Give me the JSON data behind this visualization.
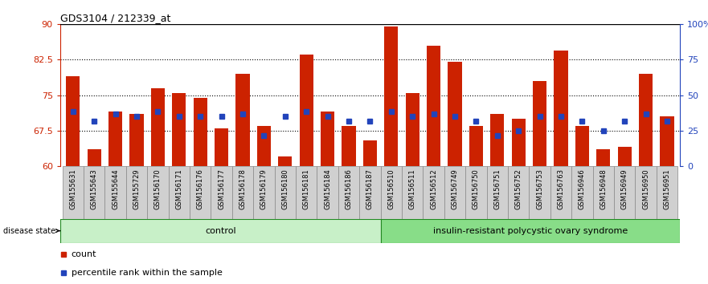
{
  "title": "GDS3104 / 212339_at",
  "samples": [
    "GSM155631",
    "GSM155643",
    "GSM155644",
    "GSM155729",
    "GSM156170",
    "GSM156171",
    "GSM156176",
    "GSM156177",
    "GSM156178",
    "GSM156179",
    "GSM156180",
    "GSM156181",
    "GSM156184",
    "GSM156186",
    "GSM156187",
    "GSM156510",
    "GSM156511",
    "GSM156512",
    "GSM156749",
    "GSM156750",
    "GSM156751",
    "GSM156752",
    "GSM156753",
    "GSM156763",
    "GSM156946",
    "GSM156948",
    "GSM156949",
    "GSM156950",
    "GSM156951"
  ],
  "bar_heights": [
    79.0,
    63.5,
    71.5,
    71.0,
    76.5,
    75.5,
    74.5,
    68.0,
    79.5,
    68.5,
    62.0,
    83.5,
    71.5,
    68.5,
    65.5,
    89.5,
    75.5,
    85.5,
    82.0,
    68.5,
    71.0,
    70.0,
    78.0,
    84.5,
    68.5,
    63.5,
    64.0,
    79.5,
    70.5
  ],
  "blue_square_y": [
    71.5,
    69.5,
    71.0,
    70.5,
    71.5,
    70.5,
    70.5,
    70.5,
    71.0,
    66.5,
    70.5,
    71.5,
    70.5,
    69.5,
    69.5,
    71.5,
    70.5,
    71.0,
    70.5,
    69.5,
    66.5,
    67.5,
    70.5,
    70.5,
    69.5,
    67.5,
    69.5,
    71.0,
    69.5
  ],
  "n_control": 15,
  "control_label": "control",
  "disease_label": "insulin-resistant polycystic ovary syndrome",
  "disease_state_label": "disease state",
  "bar_color": "#cc2200",
  "percentile_color": "#2244bb",
  "ymin": 60,
  "ymax": 90,
  "yticks": [
    60,
    67.5,
    75,
    82.5,
    90
  ],
  "ytick_labels": [
    "60",
    "67.5",
    "75",
    "82.5",
    "90"
  ],
  "right_yticks": [
    0,
    25,
    50,
    75,
    100
  ],
  "right_ytick_labels": [
    "0",
    "25",
    "50",
    "75",
    "100%"
  ],
  "grid_lines": [
    67.5,
    75.0,
    82.5
  ],
  "legend_count_label": "count",
  "legend_percentile_label": "percentile rank within the sample",
  "bg_plot": "#ffffff",
  "bg_xticklabel": "#d0d0d0",
  "control_green_light": "#b8f0b8",
  "control_green_dark": "#50cc50",
  "disease_green_light": "#b8f0b8",
  "disease_green_dark": "#50cc50"
}
